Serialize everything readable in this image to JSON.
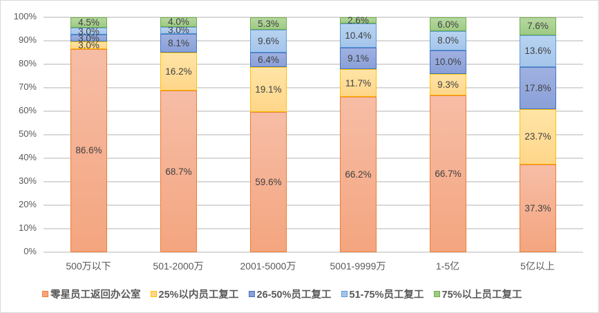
{
  "chart_data": {
    "type": "bar",
    "stacked": true,
    "percent_stacked": true,
    "title": "",
    "xlabel": "",
    "ylabel": "",
    "ylim": [
      0,
      100
    ],
    "yticks": [
      "0%",
      "10%",
      "20%",
      "30%",
      "40%",
      "50%",
      "60%",
      "70%",
      "80%",
      "90%",
      "100%"
    ],
    "grid": true,
    "legend_position": "bottom",
    "categories": [
      "500万以下",
      "501-2000万",
      "2001-5000万",
      "5001-9999万",
      "1-5亿",
      "5亿以上"
    ],
    "series": [
      {
        "name": "零星员工返回办公室",
        "color": "#f4a57f",
        "values": [
          86.6,
          68.7,
          59.6,
          66.2,
          66.7,
          37.3
        ],
        "labels": [
          "86.6%",
          "68.7%",
          "59.6%",
          "66.2%",
          "66.7%",
          "37.3%"
        ]
      },
      {
        "name": "25%以内员工复工",
        "color": "#ffd68a",
        "values": [
          3.0,
          16.2,
          19.1,
          11.7,
          9.3,
          23.7
        ],
        "labels": [
          "3.0%",
          "16.2%",
          "19.1%",
          "11.7%",
          "9.3%",
          "23.7%"
        ]
      },
      {
        "name": "26-50%员工复工",
        "color": "#8aa0d8",
        "values": [
          3.0,
          8.1,
          6.4,
          9.1,
          10.0,
          17.8
        ],
        "labels": [
          "3.0%",
          "8.1%",
          "6.4%",
          "9.1%",
          "10.0%",
          "17.8%"
        ]
      },
      {
        "name": "51-75%员工复工",
        "color": "#a5c5eb",
        "values": [
          3.0,
          3.0,
          9.6,
          10.4,
          8.0,
          13.6
        ],
        "labels": [
          "3.0%",
          "3.0%",
          "9.6%",
          "10.4%",
          "8.0%",
          "13.6%"
        ]
      },
      {
        "name": "75%以上员工复工",
        "color": "#9dcb84",
        "values": [
          4.5,
          4.0,
          5.3,
          2.6,
          6.0,
          7.6
        ],
        "labels": [
          "4.5%",
          "4.0%",
          "5.3%",
          "2.6%",
          "6.0%",
          "7.6%"
        ]
      }
    ]
  }
}
